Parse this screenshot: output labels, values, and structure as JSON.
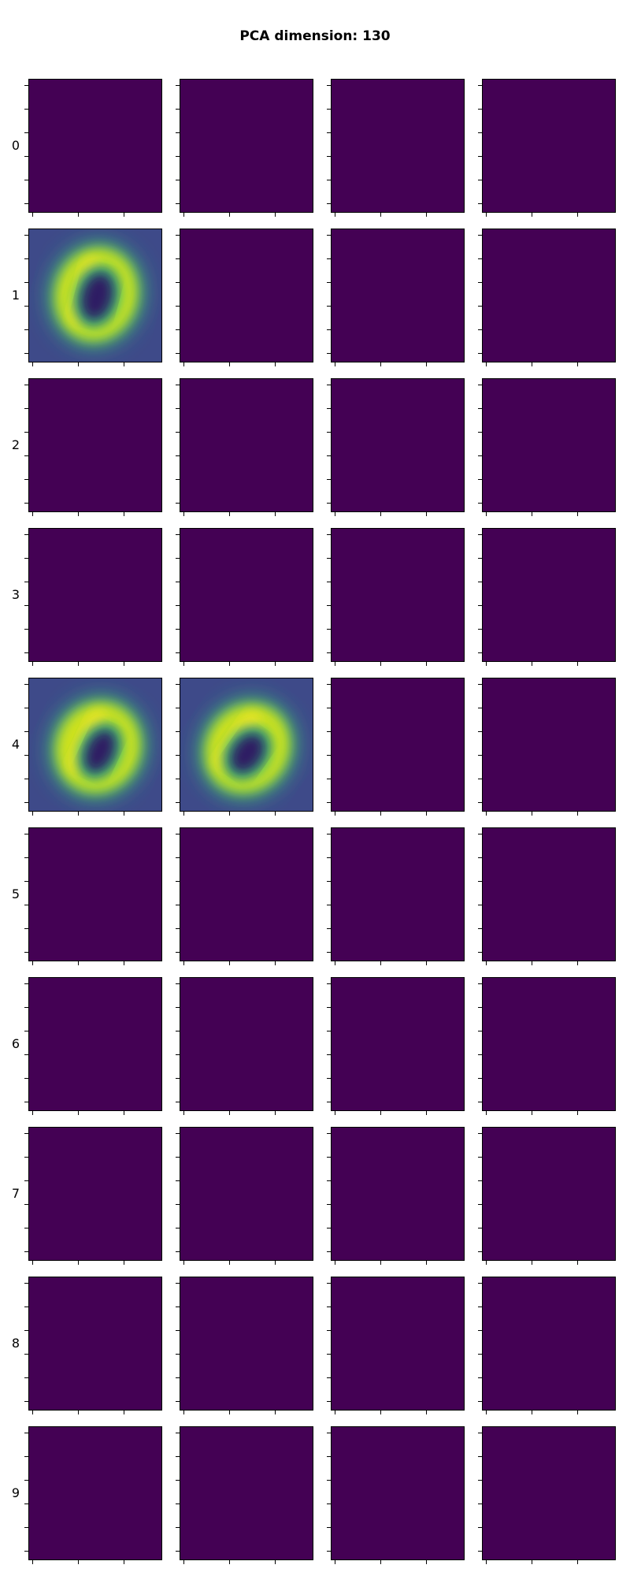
{
  "title": "PCA dimension: 130",
  "chart_data": {
    "type": "heatmap",
    "title": "PCA dimension: 130",
    "grid": {
      "rows": 10,
      "cols": 4
    },
    "colormap": "viridis",
    "background_color": "#440154",
    "row_labels": [
      "0",
      "1",
      "2",
      "3",
      "4",
      "5",
      "6",
      "7",
      "8",
      "9"
    ],
    "panels": [
      {
        "row": 1,
        "col": 0,
        "content": "reconstructed digit 0 image"
      },
      {
        "row": 4,
        "col": 0,
        "content": "reconstructed digit 0 image"
      },
      {
        "row": 4,
        "col": 1,
        "content": "reconstructed digit 0 image"
      }
    ],
    "tick_labels_shown": false,
    "grid_on": false
  },
  "colors": {
    "empty_panel": "#440154",
    "image_background": "#3e4a89",
    "ring_outer": "#35b779",
    "ring_bright": "#cde11d",
    "ring_peak": "#fde725",
    "hole": "#2d1e63"
  }
}
